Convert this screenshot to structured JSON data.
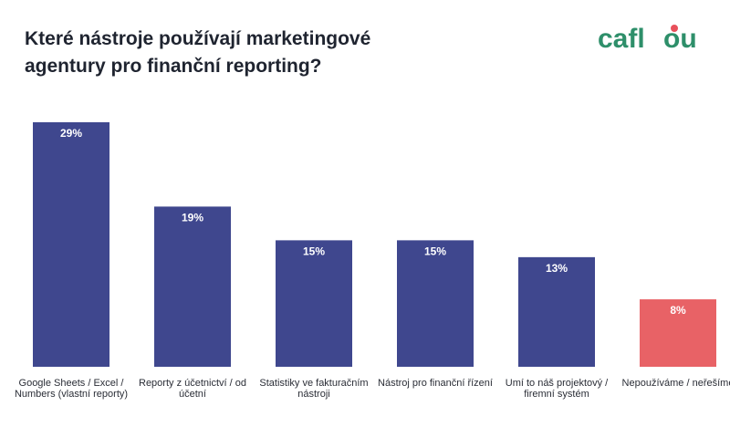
{
  "header": {
    "title": "Které nástroje používají marketingové agentury pro finanční reporting?",
    "logo_text": "caflou"
  },
  "colors": {
    "primary_bar": "#3f478e",
    "highlight_bar": "#e86266",
    "logo_green": "#2e8f6a",
    "logo_red": "#e8505b"
  },
  "chart_data": {
    "type": "bar",
    "title": "Které nástroje používají marketingové agentury pro finanční reporting?",
    "categories": [
      "Google Sheets / Excel / Numbers (vlastní reporty)",
      "Reporty z účetnictví / od účetní",
      "Statistiky ve fakturačním nástroji",
      "Nástroj pro finanční řízení",
      "Umí to náš projektový / firemní systém",
      "Nepoužíváme / neřešíme"
    ],
    "values": [
      29,
      19,
      15,
      15,
      13,
      8
    ],
    "value_labels": [
      "29%",
      "19%",
      "15%",
      "15%",
      "13%",
      "8%"
    ],
    "highlight_index": 5,
    "unit": "%",
    "ylim": [
      0,
      29
    ],
    "grid": false,
    "legend": "none"
  }
}
